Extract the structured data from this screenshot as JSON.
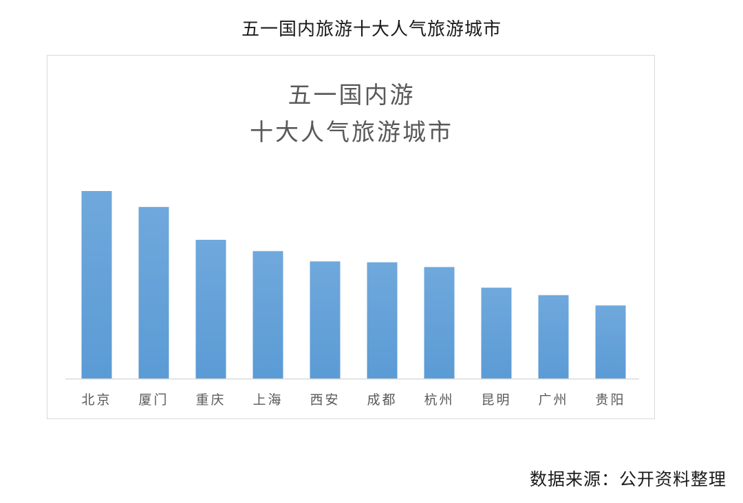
{
  "page_title": "五一国内旅游十大人气旅游城市",
  "source": "数据来源：公开资料整理",
  "colors": {
    "bar": "#5b9bd5",
    "bar_light": "#6fa8dc",
    "axis": "#d9d9d9",
    "tick_text": "#595959"
  },
  "chart_data": {
    "type": "bar",
    "title_lines": [
      "五一国内游",
      "十大人气旅游城市"
    ],
    "categories": [
      "北京",
      "厦门",
      "重庆",
      "上海",
      "西安",
      "成都",
      "杭州",
      "昆明",
      "广州",
      "贵阳"
    ],
    "values": [
      100,
      91.5,
      74,
      68,
      62.5,
      62,
      59.5,
      48.5,
      44.5,
      39
    ],
    "ylim": [
      0,
      100
    ],
    "grid": false,
    "legend": "none",
    "xlabel": "",
    "ylabel": ""
  }
}
